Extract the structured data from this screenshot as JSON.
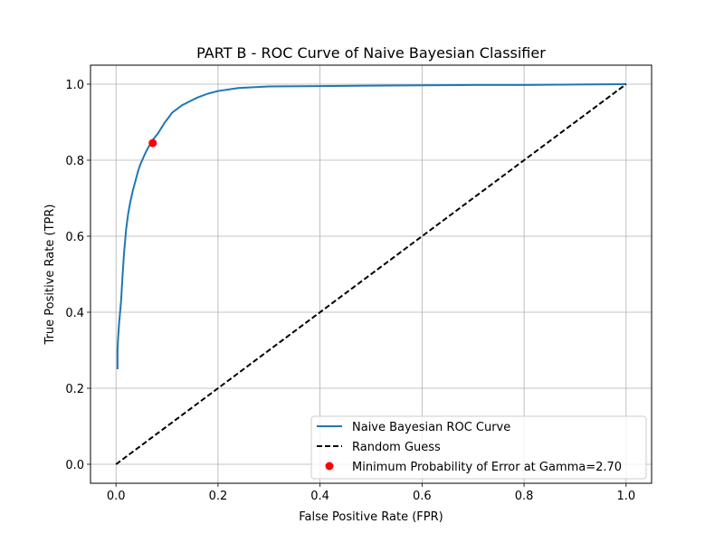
{
  "chart_data": {
    "type": "line",
    "title": "PART B - ROC Curve of Naive Bayesian Classifier",
    "xlabel": "False Positive Rate (FPR)",
    "ylabel": "True Positive Rate (TPR)",
    "xlim": [
      -0.05,
      1.05
    ],
    "ylim": [
      -0.05,
      1.05
    ],
    "xticks": [
      0.0,
      0.2,
      0.4,
      0.6,
      0.8,
      1.0
    ],
    "xtick_labels": [
      "0.0",
      "0.2",
      "0.4",
      "0.6",
      "0.8",
      "1.0"
    ],
    "yticks": [
      0.0,
      0.2,
      0.4,
      0.6,
      0.8,
      1.0
    ],
    "ytick_labels": [
      "0.0",
      "0.2",
      "0.4",
      "0.6",
      "0.8",
      "1.0"
    ],
    "grid": true,
    "legend_position": "lower-right",
    "series": [
      {
        "name": "Naive Bayesian ROC Curve",
        "style": "solid",
        "color": "#1f77b4",
        "x": [
          0.003,
          0.003,
          0.004,
          0.006,
          0.01,
          0.013,
          0.016,
          0.02,
          0.024,
          0.028,
          0.033,
          0.038,
          0.043,
          0.048,
          0.053,
          0.058,
          0.064,
          0.07,
          0.076,
          0.082,
          0.089,
          0.096,
          0.103,
          0.11,
          0.12,
          0.13,
          0.145,
          0.16,
          0.18,
          0.2,
          0.24,
          0.3,
          0.4,
          0.5,
          0.6,
          0.7,
          0.8,
          0.9,
          1.0
        ],
        "y": [
          0.25,
          0.3,
          0.33,
          0.37,
          0.43,
          0.5,
          0.56,
          0.62,
          0.66,
          0.69,
          0.72,
          0.745,
          0.77,
          0.79,
          0.805,
          0.82,
          0.835,
          0.85,
          0.86,
          0.87,
          0.885,
          0.9,
          0.912,
          0.925,
          0.935,
          0.945,
          0.955,
          0.965,
          0.975,
          0.982,
          0.99,
          0.994,
          0.995,
          0.996,
          0.997,
          0.998,
          0.998,
          0.999,
          1.0
        ]
      },
      {
        "name": "Random Guess",
        "style": "dashed",
        "color": "#000000",
        "x": [
          0.0,
          1.0
        ],
        "y": [
          0.0,
          1.0
        ]
      }
    ],
    "markers": [
      {
        "name": "Minimum Probability of Error at Gamma=2.70",
        "color": "#ff0000",
        "x": 0.072,
        "y": 0.845
      }
    ]
  }
}
